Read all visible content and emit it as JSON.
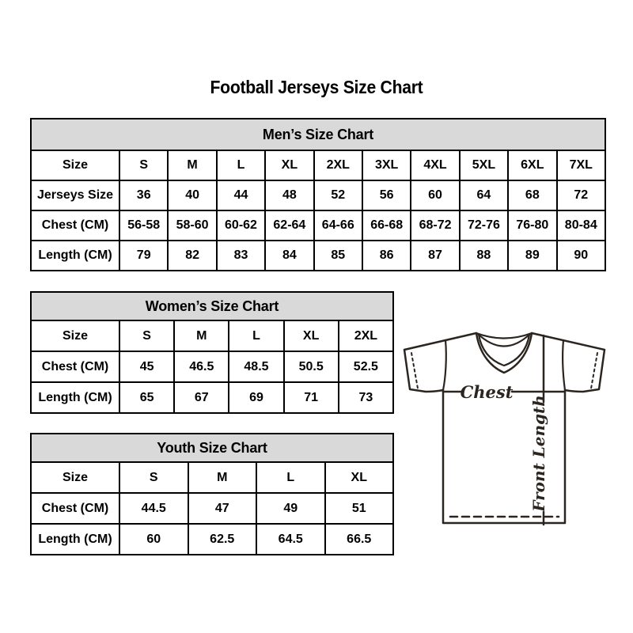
{
  "title": "Football Jerseys Size Chart",
  "tables": [
    {
      "id": "mens",
      "title": "Men’s Size Chart",
      "rows": [
        [
          "Size",
          "S",
          "M",
          "L",
          "XL",
          "2XL",
          "3XL",
          "4XL",
          "5XL",
          "6XL",
          "7XL"
        ],
        [
          "Jerseys Size",
          "36",
          "40",
          "44",
          "48",
          "52",
          "56",
          "60",
          "64",
          "68",
          "72"
        ],
        [
          "Chest (CM)",
          "56-58",
          "58-60",
          "60-62",
          "62-64",
          "64-66",
          "66-68",
          "68-72",
          "72-76",
          "76-80",
          "80-84"
        ],
        [
          "Length (CM)",
          "79",
          "82",
          "83",
          "84",
          "85",
          "86",
          "87",
          "88",
          "89",
          "90"
        ]
      ]
    },
    {
      "id": "womens",
      "title": "Women’s Size Chart",
      "rows": [
        [
          "Size",
          "S",
          "M",
          "L",
          "XL",
          "2XL"
        ],
        [
          "Chest (CM)",
          "45",
          "46.5",
          "48.5",
          "50.5",
          "52.5"
        ],
        [
          "Length (CM)",
          "65",
          "67",
          "69",
          "71",
          "73"
        ]
      ]
    },
    {
      "id": "youth",
      "title": "Youth Size Chart",
      "rows": [
        [
          "Size",
          "S",
          "M",
          "L",
          "XL"
        ],
        [
          "Chest (CM)",
          "44.5",
          "47",
          "49",
          "51"
        ],
        [
          "Length (CM)",
          "60",
          "62.5",
          "64.5",
          "66.5"
        ]
      ]
    }
  ],
  "jersey_diagram": {
    "chest_label": "Chest",
    "front_length_label": "Front Length"
  },
  "colors": {
    "table_header_bg": "#d9d9d9",
    "table_border": "#000000",
    "text": "#000000",
    "jersey_line": "#2b2520"
  }
}
